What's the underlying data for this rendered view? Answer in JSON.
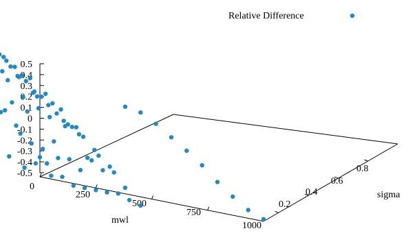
{
  "chart_data": {
    "type": "scatter",
    "series": [
      {
        "name": "Relative Difference",
        "color": "#1f8ac6",
        "points": [
          {
            "x": 0,
            "y": 0.1,
            "z": -0.32
          },
          {
            "x": 0,
            "y": 0.2,
            "z": -0.48
          },
          {
            "x": 0,
            "y": 0.3,
            "z": -0.44
          },
          {
            "x": 0,
            "y": 0.4,
            "z": -0.2
          },
          {
            "x": 0,
            "y": 0.5,
            "z": -0.37
          },
          {
            "x": 0,
            "y": 0.6,
            "z": -0.1
          },
          {
            "x": 0,
            "y": 0.7,
            "z": -0.15
          },
          {
            "x": 0,
            "y": 0.8,
            "z": 0.1
          },
          {
            "x": 0,
            "y": 0.9,
            "z": 0.02
          },
          {
            "x": 0,
            "y": 1.0,
            "z": 0.2
          },
          {
            "x": 50,
            "y": 0.1,
            "z": -0.47
          },
          {
            "x": 50,
            "y": 0.2,
            "z": -0.42
          },
          {
            "x": 50,
            "y": 0.3,
            "z": -0.21
          },
          {
            "x": 50,
            "y": 0.4,
            "z": -0.06
          },
          {
            "x": 50,
            "y": 0.5,
            "z": -0.17
          },
          {
            "x": 50,
            "y": 0.6,
            "z": 0.02
          },
          {
            "x": 50,
            "y": 0.7,
            "z": 0.06
          },
          {
            "x": 50,
            "y": 0.8,
            "z": 0.2
          },
          {
            "x": 50,
            "y": 0.9,
            "z": 0.18
          },
          {
            "x": 50,
            "y": 1.0,
            "z": 0.34
          },
          {
            "x": 100,
            "y": 0.1,
            "z": -0.46
          },
          {
            "x": 100,
            "y": 0.2,
            "z": -0.4
          },
          {
            "x": 100,
            "y": 0.3,
            "z": -0.28
          },
          {
            "x": 100,
            "y": 0.4,
            "z": -0.18
          },
          {
            "x": 100,
            "y": 0.5,
            "z": -0.12
          },
          {
            "x": 100,
            "y": 0.6,
            "z": 0.03
          },
          {
            "x": 100,
            "y": 0.7,
            "z": 0.05
          },
          {
            "x": 100,
            "y": 0.8,
            "z": 0.2
          },
          {
            "x": 100,
            "y": 0.9,
            "z": 0.23
          },
          {
            "x": 100,
            "y": 1.0,
            "z": 0.34
          },
          {
            "x": 150,
            "y": 0.1,
            "z": -0.52
          },
          {
            "x": 150,
            "y": 0.2,
            "z": -0.33
          },
          {
            "x": 150,
            "y": 0.3,
            "z": -0.31
          },
          {
            "x": 150,
            "y": 0.4,
            "z": -0.03
          },
          {
            "x": 150,
            "y": 0.5,
            "z": -0.01
          },
          {
            "x": 150,
            "y": 0.6,
            "z": 0.09
          },
          {
            "x": 150,
            "y": 0.7,
            "z": 0.18
          },
          {
            "x": 150,
            "y": 0.8,
            "z": 0.38
          },
          {
            "x": 150,
            "y": 0.9,
            "z": 0.39
          },
          {
            "x": 150,
            "y": 1.0,
            "z": 0.64
          },
          {
            "x": 200,
            "y": 0.1,
            "z": -0.52
          },
          {
            "x": 200,
            "y": 0.2,
            "z": -0.32
          },
          {
            "x": 200,
            "y": 0.3,
            "z": -0.22
          },
          {
            "x": 200,
            "y": 0.4,
            "z": 0.02
          },
          {
            "x": 200,
            "y": 0.5,
            "z": 0.06
          },
          {
            "x": 200,
            "y": 0.6,
            "z": 0.15
          },
          {
            "x": 200,
            "y": 0.7,
            "z": 0.3
          },
          {
            "x": 200,
            "y": 0.8,
            "z": 0.35
          },
          {
            "x": 200,
            "y": 0.9,
            "z": 0.5
          },
          {
            "x": 200,
            "y": 1.0,
            "z": 0.75
          },
          {
            "x": 250,
            "y": 0.1,
            "z": -0.52
          },
          {
            "x": 250,
            "y": 0.2,
            "z": -0.4
          },
          {
            "x": 250,
            "y": 0.3,
            "z": -0.06
          },
          {
            "x": 250,
            "y": 0.4,
            "z": -0.04
          },
          {
            "x": 250,
            "y": 0.5,
            "z": 0.13
          },
          {
            "x": 250,
            "y": 0.6,
            "z": 0.2
          },
          {
            "x": 250,
            "y": 0.7,
            "z": 0.32
          },
          {
            "x": 250,
            "y": 0.8,
            "z": 0.44
          },
          {
            "x": 250,
            "y": 0.9,
            "z": 0.48
          },
          {
            "x": 250,
            "y": 1.0,
            "z": 0.5
          },
          {
            "x": 300,
            "y": 0.1,
            "z": -0.52
          },
          {
            "x": 300,
            "y": 0.2,
            "z": -0.29
          },
          {
            "x": 300,
            "y": 0.3,
            "z": -0.05
          },
          {
            "x": 300,
            "y": 0.4,
            "z": 0.05
          },
          {
            "x": 300,
            "y": 0.5,
            "z": 0.13
          },
          {
            "x": 300,
            "y": 0.6,
            "z": 0.21
          },
          {
            "x": 300,
            "y": 0.7,
            "z": 0.25
          },
          {
            "x": 300,
            "y": 0.8,
            "z": 0.3
          },
          {
            "x": 300,
            "y": 0.9,
            "z": 0.4
          },
          {
            "x": 300,
            "y": 1.0,
            "z": 0.41
          },
          {
            "x": 350,
            "y": 0.1,
            "z": -0.51
          },
          {
            "x": 350,
            "y": 0.2,
            "z": -0.36
          },
          {
            "x": 350,
            "y": 0.3,
            "z": -0.31
          },
          {
            "x": 350,
            "y": 0.4,
            "z": -0.09
          },
          {
            "x": 350,
            "y": 0.5,
            "z": -0.03
          },
          {
            "x": 350,
            "y": 0.6,
            "z": 0.06
          },
          {
            "x": 350,
            "y": 0.7,
            "z": 0.14
          },
          {
            "x": 350,
            "y": 0.8,
            "z": 0.21
          },
          {
            "x": 350,
            "y": 0.9,
            "z": 0.32
          },
          {
            "x": 350,
            "y": 1.0,
            "z": 0.3
          },
          {
            "x": 400,
            "y": 0.1,
            "z": -0.55
          },
          {
            "x": 400,
            "y": 0.2,
            "z": -0.36
          },
          {
            "x": 400,
            "y": 0.3,
            "z": -0.27
          },
          {
            "x": 400,
            "y": 0.4,
            "z": -0.16
          },
          {
            "x": 400,
            "y": 0.5,
            "z": -0.11
          },
          {
            "x": 400,
            "y": 0.6,
            "z": 0.02
          },
          {
            "x": 400,
            "y": 0.7,
            "z": 0.02
          },
          {
            "x": 400,
            "y": 0.8,
            "z": 0.15
          },
          {
            "x": 400,
            "y": 0.9,
            "z": 0.22
          },
          {
            "x": 400,
            "y": 1.0,
            "z": 0.22
          },
          {
            "x": 450,
            "y": 0.1,
            "z": -0.58
          },
          {
            "x": 450,
            "y": 0.2,
            "z": -0.48
          },
          {
            "x": 450,
            "y": 0.3,
            "z": -0.35
          },
          {
            "x": 450,
            "y": 0.4,
            "z": -0.26
          },
          {
            "x": 450,
            "y": 0.5,
            "z": -0.18
          },
          {
            "x": 450,
            "y": 0.6,
            "z": -0.12
          },
          {
            "x": 450,
            "y": 0.7,
            "z": -0.04
          },
          {
            "x": 450,
            "y": 0.8,
            "z": 0.01
          },
          {
            "x": 450,
            "y": 0.9,
            "z": 0.1
          },
          {
            "x": 450,
            "y": 1.0,
            "z": 0.08
          },
          {
            "x": 1000,
            "y": 0.1,
            "z": -0.48
          },
          {
            "x": 1000,
            "y": 0.2,
            "z": -0.46
          },
          {
            "x": 1000,
            "y": 0.3,
            "z": -0.4
          },
          {
            "x": 1000,
            "y": 0.4,
            "z": -0.33
          },
          {
            "x": 1000,
            "y": 0.5,
            "z": -0.24
          },
          {
            "x": 1000,
            "y": 0.6,
            "z": -0.17
          },
          {
            "x": 1000,
            "y": 0.7,
            "z": -0.11
          },
          {
            "x": 1000,
            "y": 0.8,
            "z": -0.05
          },
          {
            "x": 1000,
            "y": 0.9,
            "z": -0.01
          },
          {
            "x": 1000,
            "y": 1.0,
            "z": -0.02
          }
        ]
      }
    ],
    "axes": {
      "x": {
        "label": "mwl",
        "ticks": [
          0,
          250,
          500,
          750,
          1000
        ],
        "range": [
          0,
          1000
        ]
      },
      "y": {
        "label": "sigma",
        "ticks": [
          0.2,
          0.4,
          0.6,
          0.8
        ],
        "tick_labels": [
          "0.2",
          "0.4",
          "0.6",
          "0.8"
        ],
        "range": [
          0.1,
          1.0
        ]
      },
      "z": {
        "label": "",
        "ticks": [
          -0.5,
          -0.4,
          -0.3,
          -0.2,
          -0.1,
          0,
          0.1,
          0.2,
          0.3,
          0.4,
          0.5
        ],
        "tick_labels": [
          "-0.5",
          "-0.4",
          "-0.3",
          "-0.2",
          "-0.1",
          "0",
          "0.1",
          "0.2",
          "0.3",
          "0.4",
          "0.5"
        ],
        "range": [
          -0.5,
          0.5
        ]
      }
    },
    "legend": {
      "position": "top-right",
      "label": "Relative Difference"
    },
    "grid": false,
    "title": ""
  }
}
